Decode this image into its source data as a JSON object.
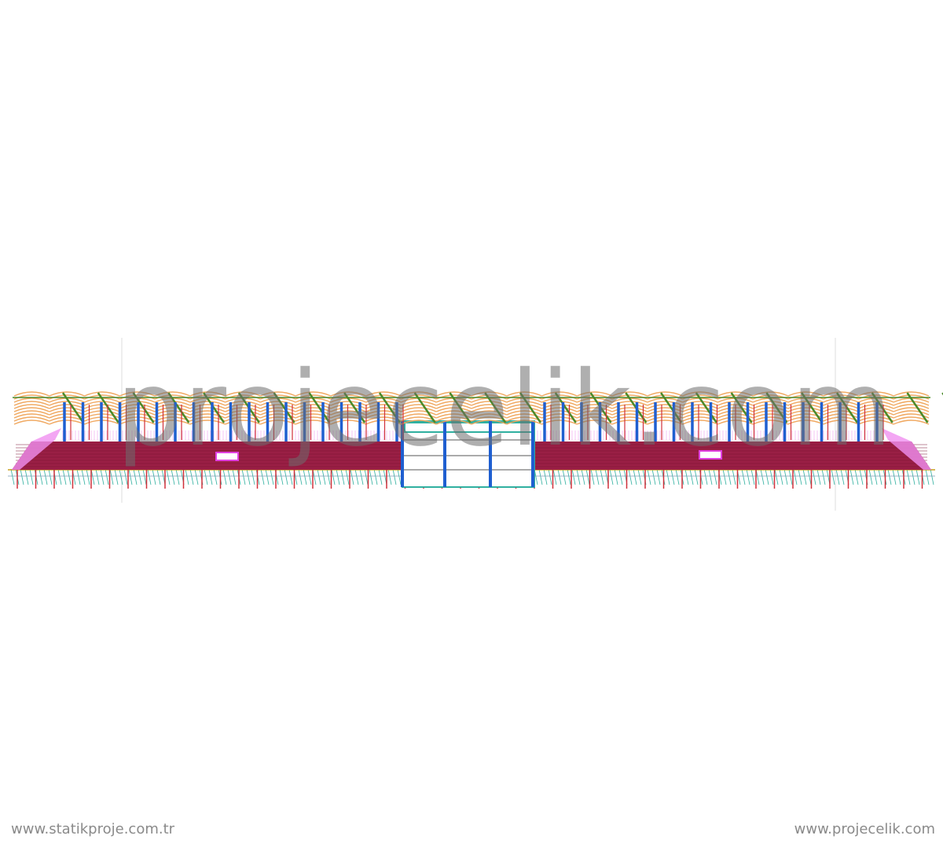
{
  "watermark": "projecelik.com",
  "footer": {
    "left_url": "www.statikproje.com.tr",
    "right_url": "www.projecelik.com"
  },
  "colors": {
    "roof_purlins": "#f0a860",
    "roof_rafters": "#4a8a2a",
    "columns": "#1f5fd0",
    "braces": "#d0303a",
    "deck": "#9a1f45",
    "stairs": "#f090f0",
    "substructure": "#30b0a0"
  }
}
